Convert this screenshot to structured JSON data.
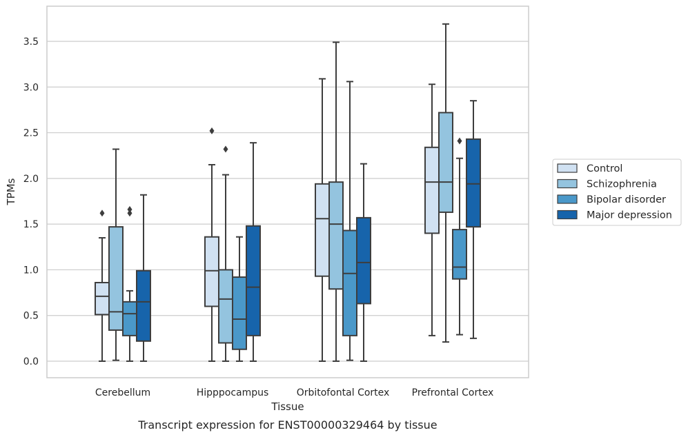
{
  "chart_data": {
    "type": "box",
    "xlabel": "Tissue",
    "ylabel": "TPMs",
    "caption": "Transcript expression for ENST00000329464 by tissue",
    "ylim": [
      -0.18,
      3.88
    ],
    "yticks": [
      "0.0",
      "0.5",
      "1.0",
      "1.5",
      "2.0",
      "2.5",
      "3.0",
      "3.5"
    ],
    "ytick_values": [
      0.0,
      0.5,
      1.0,
      1.5,
      2.0,
      2.5,
      3.0,
      3.5
    ],
    "grid": "horizontal",
    "legend_position": "right",
    "categories": [
      "Cerebellum",
      "Hipppocampus",
      "Orbitofontal Cortex",
      "Prefrontal Cortex"
    ],
    "series": [
      {
        "name": "Control",
        "color": "#d0e1f2",
        "boxes": [
          {
            "whislo": 0.0,
            "q1": 0.51,
            "med": 0.71,
            "q3": 0.86,
            "whishi": 1.35,
            "fliers": [
              1.62
            ]
          },
          {
            "whislo": 0.0,
            "q1": 0.6,
            "med": 0.99,
            "q3": 1.36,
            "whishi": 2.15,
            "fliers": [
              2.52
            ]
          },
          {
            "whislo": 0.0,
            "q1": 0.93,
            "med": 1.56,
            "q3": 1.94,
            "whishi": 3.09,
            "fliers": []
          },
          {
            "whislo": 0.28,
            "q1": 1.4,
            "med": 1.96,
            "q3": 2.34,
            "whishi": 3.03,
            "fliers": []
          }
        ]
      },
      {
        "name": "Schizophrenia",
        "color": "#94c4df",
        "boxes": [
          {
            "whislo": 0.01,
            "q1": 0.34,
            "med": 0.54,
            "q3": 1.47,
            "whishi": 2.32,
            "fliers": []
          },
          {
            "whislo": 0.0,
            "q1": 0.2,
            "med": 0.68,
            "q3": 1.0,
            "whishi": 2.04,
            "fliers": [
              2.32
            ]
          },
          {
            "whislo": 0.0,
            "q1": 0.79,
            "med": 1.5,
            "q3": 1.96,
            "whishi": 3.49,
            "fliers": []
          },
          {
            "whislo": 0.21,
            "q1": 1.63,
            "med": 1.96,
            "q3": 2.72,
            "whishi": 3.69,
            "fliers": []
          }
        ]
      },
      {
        "name": "Bipolar disorder",
        "color": "#4a98c9",
        "boxes": [
          {
            "whislo": 0.0,
            "q1": 0.28,
            "med": 0.52,
            "q3": 0.65,
            "whishi": 0.77,
            "fliers": [
              1.62,
              1.66
            ]
          },
          {
            "whislo": 0.0,
            "q1": 0.13,
            "med": 0.46,
            "q3": 0.92,
            "whishi": 1.36,
            "fliers": []
          },
          {
            "whislo": 0.01,
            "q1": 0.28,
            "med": 0.96,
            "q3": 1.43,
            "whishi": 3.06,
            "fliers": []
          },
          {
            "whislo": 0.29,
            "q1": 0.9,
            "med": 1.03,
            "q3": 1.44,
            "whishi": 2.22,
            "fliers": [
              2.41
            ]
          }
        ]
      },
      {
        "name": "Major depression",
        "color": "#1764ab",
        "boxes": [
          {
            "whislo": 0.0,
            "q1": 0.22,
            "med": 0.65,
            "q3": 0.99,
            "whishi": 1.82,
            "fliers": []
          },
          {
            "whislo": 0.0,
            "q1": 0.28,
            "med": 0.81,
            "q3": 1.48,
            "whishi": 2.39,
            "fliers": []
          },
          {
            "whislo": 0.0,
            "q1": 0.63,
            "med": 1.08,
            "q3": 1.57,
            "whishi": 2.16,
            "fliers": []
          },
          {
            "whislo": 0.25,
            "q1": 1.47,
            "med": 1.94,
            "q3": 2.43,
            "whishi": 2.85,
            "fliers": []
          }
        ]
      }
    ]
  }
}
